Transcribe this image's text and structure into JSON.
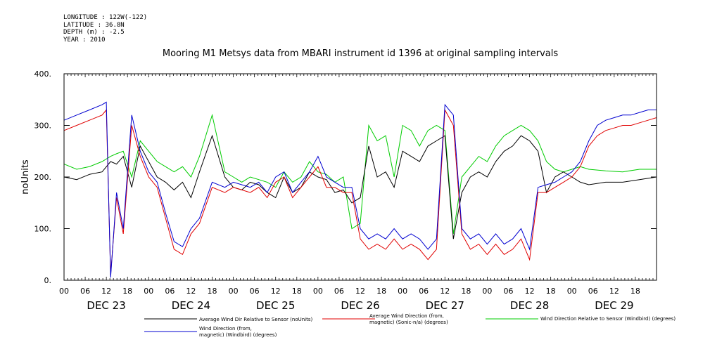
{
  "meta": {
    "longitude": "LONGITUDE : 122W(-122)",
    "latitude": "LATITUDE : 36.8N",
    "depth": "DEPTH (m) : -2.5",
    "year": "YEAR : 2010"
  },
  "colors": {
    "avg_wind_dir_rel": "#000000",
    "avg_wind_direction": "#e00000",
    "wind_dir_rel_windbird": "#00cc00",
    "wind_direction_windbird": "#0000d0"
  },
  "chart_data": {
    "type": "line",
    "title": "Mooring M1 Metsys data from MBARI instrument id 1396 at original sampling intervals",
    "ylabel": "noUnits",
    "xlabel": "",
    "ylim": [
      0,
      400
    ],
    "yticks": [
      "0.",
      "100.",
      "200.",
      "300.",
      "400."
    ],
    "ytick_values": [
      0,
      100,
      200,
      300,
      400
    ],
    "xlim": [
      0,
      7
    ],
    "x_unit": "days from DEC 23 00:00",
    "hour_ticks": [
      "00",
      "06",
      "12",
      "18",
      "00",
      "06",
      "12",
      "18",
      "00",
      "06",
      "12",
      "18",
      "00",
      "06",
      "12",
      "18",
      "00",
      "06",
      "12",
      "18",
      "00",
      "06",
      "12",
      "18",
      "00",
      "06",
      "12",
      "18"
    ],
    "day_labels": [
      "DEC 23",
      "DEC 24",
      "DEC 25",
      "DEC 26",
      "DEC 27",
      "DEC 28",
      "DEC 29"
    ],
    "grid": false,
    "legend_placement": "bottom",
    "series": [
      {
        "name": "Average Wind Dir Relative to Sensor (noUnits)",
        "key": "avg_wind_dir_rel",
        "x": [
          0.0,
          0.15,
          0.3,
          0.45,
          0.55,
          0.62,
          0.7,
          0.8,
          0.9,
          1.0,
          1.1,
          1.2,
          1.3,
          1.4,
          1.5,
          1.6,
          1.75,
          1.9,
          2.0,
          2.1,
          2.2,
          2.3,
          2.4,
          2.5,
          2.6,
          2.7,
          2.8,
          2.9,
          3.0,
          3.1,
          3.2,
          3.3,
          3.4,
          3.5,
          3.6,
          3.7,
          3.8,
          3.9,
          4.0,
          4.1,
          4.2,
          4.3,
          4.4,
          4.5,
          4.6,
          4.7,
          4.8,
          4.9,
          5.0,
          5.1,
          5.2,
          5.3,
          5.4,
          5.5,
          5.6,
          5.7,
          5.8,
          5.9,
          6.0,
          6.1,
          6.2,
          6.4,
          6.6,
          6.8,
          7.0
        ],
        "y": [
          200,
          195,
          205,
          210,
          230,
          225,
          240,
          180,
          260,
          230,
          200,
          190,
          175,
          190,
          160,
          210,
          280,
          200,
          180,
          175,
          190,
          185,
          170,
          160,
          200,
          170,
          180,
          210,
          200,
          195,
          170,
          175,
          150,
          160,
          260,
          200,
          210,
          180,
          250,
          240,
          230,
          260,
          270,
          280,
          80,
          170,
          200,
          210,
          200,
          230,
          250,
          260,
          280,
          270,
          250,
          170,
          200,
          210,
          200,
          190,
          185,
          190,
          190,
          195,
          200
        ]
      },
      {
        "name": "Average Wind Direction (from, magnetic) (Sonic-n/a) (degrees)",
        "key": "avg_wind_direction",
        "x": [
          0.0,
          0.15,
          0.3,
          0.45,
          0.5,
          0.55,
          0.62,
          0.7,
          0.8,
          0.9,
          1.0,
          1.1,
          1.2,
          1.3,
          1.4,
          1.5,
          1.6,
          1.75,
          1.9,
          2.0,
          2.1,
          2.2,
          2.3,
          2.4,
          2.5,
          2.6,
          2.7,
          2.8,
          2.9,
          3.0,
          3.1,
          3.2,
          3.3,
          3.4,
          3.5,
          3.6,
          3.7,
          3.8,
          3.9,
          4.0,
          4.1,
          4.2,
          4.3,
          4.4,
          4.5,
          4.6,
          4.7,
          4.8,
          4.9,
          5.0,
          5.1,
          5.2,
          5.3,
          5.4,
          5.5,
          5.6,
          5.7,
          5.8,
          5.9,
          6.0,
          6.1,
          6.2,
          6.3,
          6.4,
          6.5,
          6.6,
          6.7,
          6.8,
          6.9,
          7.0
        ],
        "y": [
          290,
          300,
          310,
          320,
          330,
          10,
          160,
          90,
          300,
          240,
          200,
          180,
          120,
          60,
          50,
          90,
          110,
          180,
          170,
          180,
          175,
          170,
          180,
          160,
          190,
          200,
          160,
          180,
          200,
          220,
          180,
          180,
          170,
          170,
          80,
          60,
          70,
          60,
          80,
          60,
          70,
          60,
          40,
          60,
          330,
          300,
          90,
          60,
          70,
          50,
          70,
          50,
          60,
          80,
          40,
          170,
          170,
          180,
          190,
          200,
          220,
          260,
          280,
          290,
          295,
          300,
          300,
          305,
          310,
          315
        ]
      },
      {
        "name": "Wind Direction Relative to Sensor (Windbird) (degrees)",
        "key": "wind_dir_rel_windbird",
        "x": [
          0.0,
          0.15,
          0.3,
          0.45,
          0.55,
          0.62,
          0.7,
          0.8,
          0.9,
          1.0,
          1.1,
          1.2,
          1.3,
          1.4,
          1.5,
          1.6,
          1.75,
          1.9,
          2.0,
          2.1,
          2.2,
          2.3,
          2.4,
          2.5,
          2.6,
          2.7,
          2.8,
          2.9,
          3.0,
          3.1,
          3.2,
          3.3,
          3.4,
          3.5,
          3.6,
          3.7,
          3.8,
          3.9,
          4.0,
          4.1,
          4.2,
          4.3,
          4.4,
          4.5,
          4.6,
          4.7,
          4.8,
          4.9,
          5.0,
          5.1,
          5.2,
          5.3,
          5.4,
          5.5,
          5.6,
          5.7,
          5.8,
          5.9,
          6.0,
          6.1,
          6.2,
          6.4,
          6.6,
          6.8,
          7.0
        ],
        "y": [
          225,
          215,
          220,
          230,
          240,
          245,
          250,
          200,
          270,
          250,
          230,
          220,
          210,
          220,
          200,
          240,
          320,
          210,
          200,
          190,
          200,
          195,
          190,
          180,
          210,
          190,
          200,
          230,
          210,
          205,
          190,
          200,
          100,
          110,
          300,
          270,
          280,
          200,
          300,
          290,
          260,
          290,
          300,
          290,
          90,
          200,
          220,
          240,
          230,
          260,
          280,
          290,
          300,
          290,
          270,
          230,
          215,
          210,
          215,
          220,
          215,
          212,
          210,
          215,
          215
        ]
      },
      {
        "name": "Wind Direction (from, magnetic) (Windbird) (degrees)",
        "key": "wind_direction_windbird",
        "x": [
          0.0,
          0.15,
          0.3,
          0.45,
          0.5,
          0.55,
          0.62,
          0.7,
          0.8,
          0.9,
          1.0,
          1.1,
          1.2,
          1.3,
          1.4,
          1.5,
          1.6,
          1.75,
          1.9,
          2.0,
          2.1,
          2.2,
          2.3,
          2.4,
          2.5,
          2.6,
          2.7,
          2.8,
          2.9,
          3.0,
          3.1,
          3.2,
          3.3,
          3.4,
          3.5,
          3.6,
          3.7,
          3.8,
          3.9,
          4.0,
          4.1,
          4.2,
          4.3,
          4.4,
          4.5,
          4.6,
          4.7,
          4.8,
          4.9,
          5.0,
          5.1,
          5.2,
          5.3,
          5.4,
          5.5,
          5.6,
          5.7,
          5.8,
          5.9,
          6.0,
          6.1,
          6.2,
          6.3,
          6.4,
          6.5,
          6.6,
          6.7,
          6.8,
          6.9,
          7.0
        ],
        "y": [
          310,
          320,
          330,
          340,
          345,
          5,
          170,
          100,
          320,
          250,
          210,
          190,
          130,
          75,
          65,
          100,
          120,
          190,
          180,
          190,
          185,
          180,
          190,
          170,
          200,
          210,
          170,
          190,
          210,
          240,
          200,
          190,
          180,
          180,
          100,
          80,
          90,
          80,
          100,
          80,
          90,
          80,
          60,
          80,
          340,
          320,
          100,
          80,
          90,
          70,
          90,
          70,
          80,
          100,
          60,
          180,
          185,
          190,
          200,
          210,
          230,
          270,
          300,
          310,
          315,
          320,
          320,
          325,
          330,
          330
        ]
      }
    ]
  }
}
